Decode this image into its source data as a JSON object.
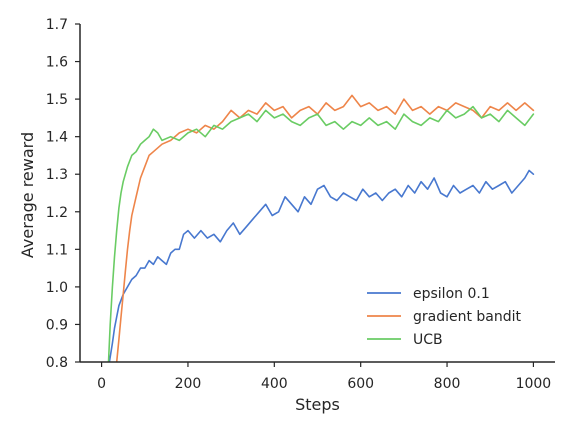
{
  "chart_data": {
    "type": "line",
    "title": "",
    "xlabel": "Steps",
    "ylabel": "Average reward",
    "xlim": [
      -50,
      1050
    ],
    "ylim": [
      0.8,
      1.7
    ],
    "xticks": [
      0,
      200,
      400,
      600,
      800,
      1000
    ],
    "yticks": [
      0.8,
      0.9,
      1.0,
      1.1,
      1.2,
      1.3,
      1.4,
      1.5,
      1.6,
      1.7
    ],
    "grid": false,
    "legend_position": "lower-right",
    "series": [
      {
        "name": "epsilon 0.1",
        "color": "#4878cf",
        "x": [
          18,
          25,
          30,
          35,
          40,
          50,
          60,
          70,
          80,
          90,
          100,
          110,
          120,
          130,
          140,
          150,
          160,
          170,
          180,
          190,
          200,
          215,
          230,
          245,
          260,
          275,
          290,
          305,
          320,
          335,
          350,
          365,
          380,
          395,
          410,
          425,
          440,
          455,
          470,
          485,
          500,
          515,
          530,
          545,
          560,
          575,
          590,
          605,
          620,
          635,
          650,
          665,
          680,
          695,
          710,
          725,
          740,
          755,
          770,
          785,
          800,
          815,
          830,
          845,
          860,
          875,
          890,
          905,
          920,
          935,
          950,
          965,
          980,
          990,
          1000
        ],
        "y": [
          0.8,
          0.85,
          0.89,
          0.92,
          0.95,
          0.98,
          1.0,
          1.02,
          1.03,
          1.05,
          1.05,
          1.07,
          1.06,
          1.08,
          1.07,
          1.06,
          1.09,
          1.1,
          1.1,
          1.14,
          1.15,
          1.13,
          1.15,
          1.13,
          1.14,
          1.12,
          1.15,
          1.17,
          1.14,
          1.16,
          1.18,
          1.2,
          1.22,
          1.19,
          1.2,
          1.24,
          1.22,
          1.2,
          1.24,
          1.22,
          1.26,
          1.27,
          1.24,
          1.23,
          1.25,
          1.24,
          1.23,
          1.26,
          1.24,
          1.25,
          1.23,
          1.25,
          1.26,
          1.24,
          1.27,
          1.25,
          1.28,
          1.26,
          1.29,
          1.25,
          1.24,
          1.27,
          1.25,
          1.26,
          1.27,
          1.25,
          1.28,
          1.26,
          1.27,
          1.28,
          1.25,
          1.27,
          1.29,
          1.31,
          1.3
        ]
      },
      {
        "name": "gradient bandit",
        "color": "#ee854a",
        "x": [
          35,
          40,
          45,
          50,
          55,
          60,
          65,
          70,
          80,
          90,
          100,
          110,
          120,
          140,
          160,
          180,
          200,
          220,
          240,
          260,
          280,
          300,
          320,
          340,
          360,
          380,
          400,
          420,
          440,
          460,
          480,
          500,
          520,
          540,
          560,
          580,
          600,
          620,
          640,
          660,
          680,
          700,
          720,
          740,
          760,
          780,
          800,
          820,
          840,
          860,
          880,
          900,
          920,
          940,
          960,
          980,
          1000
        ],
        "y": [
          0.8,
          0.86,
          0.92,
          0.98,
          1.04,
          1.1,
          1.15,
          1.19,
          1.24,
          1.29,
          1.32,
          1.35,
          1.36,
          1.38,
          1.39,
          1.41,
          1.42,
          1.41,
          1.43,
          1.42,
          1.44,
          1.47,
          1.45,
          1.47,
          1.46,
          1.49,
          1.47,
          1.48,
          1.45,
          1.47,
          1.48,
          1.46,
          1.49,
          1.47,
          1.48,
          1.51,
          1.48,
          1.49,
          1.47,
          1.48,
          1.46,
          1.5,
          1.47,
          1.48,
          1.46,
          1.48,
          1.47,
          1.49,
          1.48,
          1.47,
          1.45,
          1.48,
          1.47,
          1.49,
          1.47,
          1.49,
          1.47
        ]
      },
      {
        "name": "UCB",
        "color": "#6acc64",
        "x": [
          16,
          20,
          25,
          30,
          35,
          40,
          45,
          50,
          60,
          70,
          80,
          90,
          100,
          110,
          120,
          130,
          140,
          160,
          180,
          200,
          220,
          240,
          260,
          280,
          300,
          320,
          340,
          360,
          380,
          400,
          420,
          440,
          460,
          480,
          500,
          520,
          540,
          560,
          580,
          600,
          620,
          640,
          660,
          680,
          700,
          720,
          740,
          760,
          780,
          800,
          820,
          840,
          860,
          880,
          900,
          920,
          940,
          960,
          980,
          1000
        ],
        "y": [
          0.8,
          0.9,
          1.0,
          1.08,
          1.15,
          1.21,
          1.25,
          1.28,
          1.32,
          1.35,
          1.36,
          1.38,
          1.39,
          1.4,
          1.42,
          1.41,
          1.39,
          1.4,
          1.39,
          1.41,
          1.42,
          1.4,
          1.43,
          1.42,
          1.44,
          1.45,
          1.46,
          1.44,
          1.47,
          1.45,
          1.46,
          1.44,
          1.43,
          1.45,
          1.46,
          1.43,
          1.44,
          1.42,
          1.44,
          1.43,
          1.45,
          1.43,
          1.44,
          1.42,
          1.46,
          1.44,
          1.43,
          1.45,
          1.44,
          1.47,
          1.45,
          1.46,
          1.48,
          1.45,
          1.46,
          1.44,
          1.47,
          1.45,
          1.43,
          1.46
        ]
      }
    ]
  }
}
